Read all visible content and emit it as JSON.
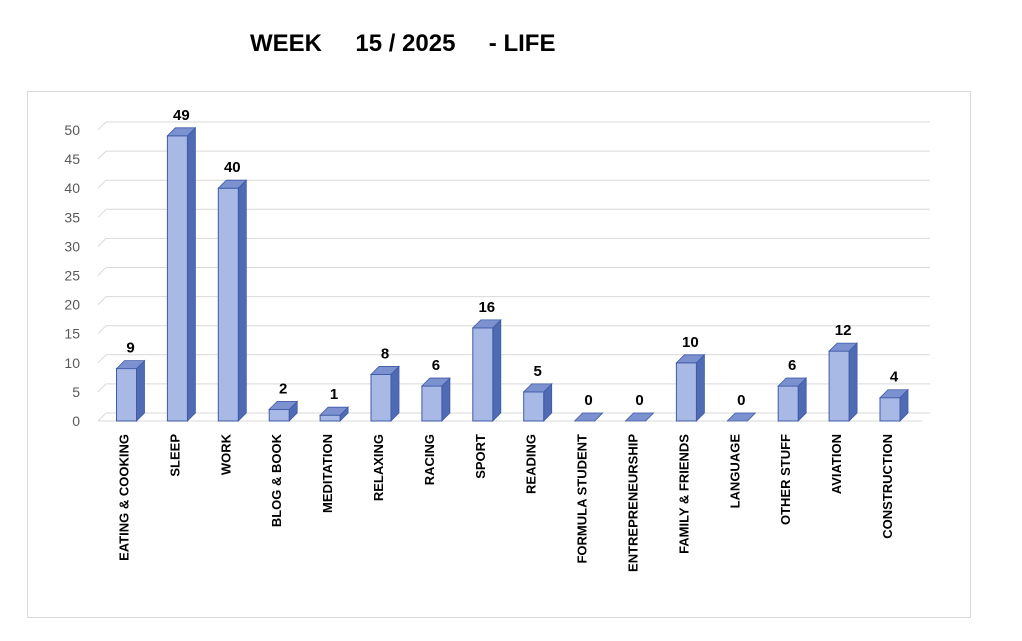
{
  "chart_data": {
    "type": "bar",
    "title_parts": [
      "WEEK",
      "15",
      "/ 2025",
      "- LIFE"
    ],
    "categories": [
      "EATING & COOKING",
      "SLEEP",
      "WORK",
      "BLOG & BOOK",
      "MEDITATION",
      "RELAXING",
      "RACING",
      "SPORT",
      "READING",
      "FORMULA STUDENT",
      "ENTREPRENEURSHIP",
      "FAMILY & FRIENDS",
      "LANGUAGE",
      "OTHER STUFF",
      "AVIATION",
      "CONSTRUCTION"
    ],
    "values": [
      9,
      49,
      40,
      2,
      1,
      8,
      6,
      16,
      5,
      0,
      0,
      10,
      0,
      6,
      12,
      4
    ],
    "ylim": [
      0,
      50
    ],
    "yticks": [
      0,
      5,
      10,
      15,
      20,
      25,
      30,
      35,
      40,
      45,
      50
    ],
    "grid": true,
    "legend": "none",
    "colors": {
      "bar_front": "#a9b9e6",
      "bar_side": "#4f6bb3",
      "bar_top": "#7b91d0",
      "bar_stroke": "#3f5aa6",
      "grid": "#d9d9d9",
      "tick": "#595959"
    }
  }
}
